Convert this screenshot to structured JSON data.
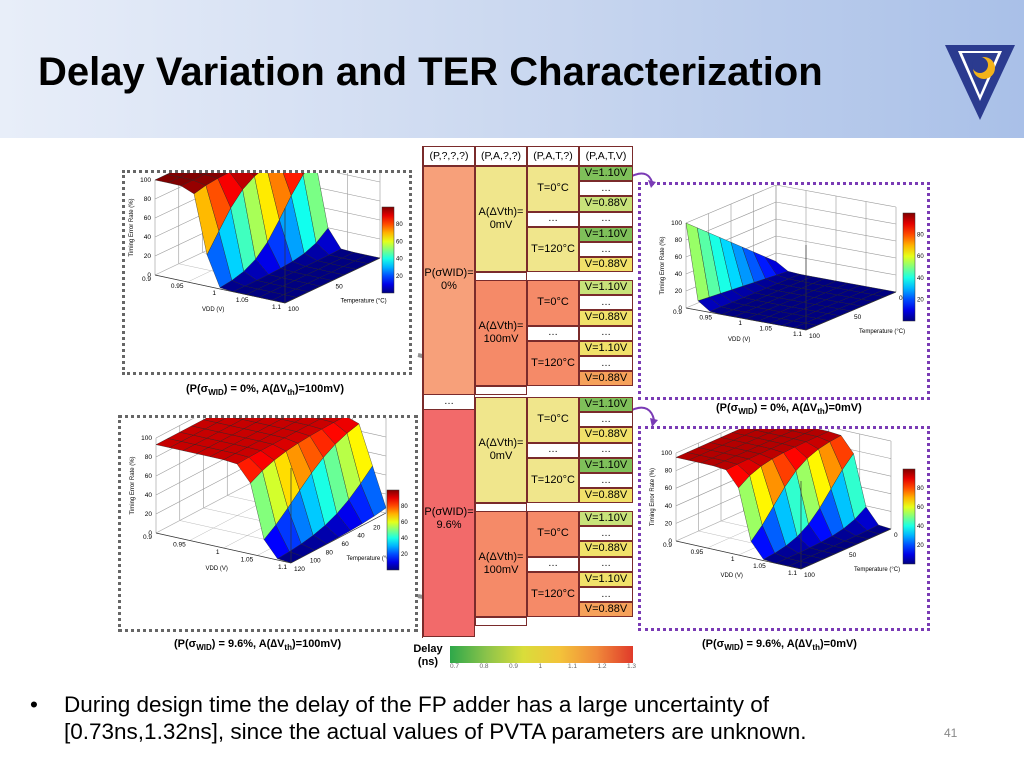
{
  "slide": {
    "title": "Delay Variation and TER Characterization",
    "page_number": "41",
    "bullet": "During design time the delay of the FP adder has a large uncertainty of [0.73ns,1.32ns], since the actual values of PVTA parameters are unknown."
  },
  "plots": {
    "common": {
      "z_label": "Timing Error Rate (%)",
      "x_label": "VDD (V)",
      "t_label": "Temperature (°C)",
      "z_ticks": [
        "0",
        "20",
        "40",
        "60",
        "80",
        "100"
      ],
      "v_ticks": [
        "0.9",
        "0.95",
        "1",
        "1.05",
        "1.1"
      ],
      "cb_ticks": [
        "20",
        "40",
        "60",
        "80"
      ]
    },
    "top_left": {
      "caption": "(P(σ_WID) = 0%, A(ΔV_th)=100mV)",
      "t_ticks": [
        "100",
        "50",
        "0"
      ]
    },
    "top_right": {
      "caption": "(P(σ_WID) = 0%, A(ΔV_th)=0mV)",
      "t_ticks": [
        "100",
        "50",
        "0"
      ]
    },
    "bottom_left": {
      "caption": "(P(σ_WID) = 9.6%, A(ΔV_th)=100mV)",
      "t_ticks": [
        "120",
        "100",
        "80",
        "60",
        "40",
        "20",
        "0"
      ]
    },
    "bottom_right": {
      "caption": "(P(σ_WID) = 9.6%, A(ΔV_th)=0mV)",
      "t_ticks": [
        "100",
        "50",
        "0"
      ]
    }
  },
  "table": {
    "headers": [
      "(P,?,?,?)",
      "(P,A,?,?)",
      "(P,A,T,?)",
      "(P,A,T,V)"
    ],
    "p0": "P(σWID)= 0%",
    "p1": "P(σWID)= 9.6%",
    "a0": "A(ΔVth)= 0mV",
    "a100": "A(ΔVth)= 100mV",
    "t0": "T=0°C",
    "t120": "T=120°C",
    "v110": "V=1.10V",
    "v088": "V=0.88V",
    "ellipsis": "…",
    "delay_label": "Delay (ns)",
    "cb_ticks": [
      "0.7",
      "0.8",
      "0.9",
      "1",
      "1.1",
      "1.2",
      "1.3"
    ]
  },
  "colors": {
    "p0": "#f7a07a",
    "p1": "#f26a6a",
    "a_yellow": "#f0e68c",
    "a_salmon": "#f58a68",
    "green": "#7fc05a",
    "lightgreen": "#c8e27a",
    "yellow": "#f1e16a",
    "orange": "#f6a15a",
    "frame_purple": "#7a3bb5"
  }
}
